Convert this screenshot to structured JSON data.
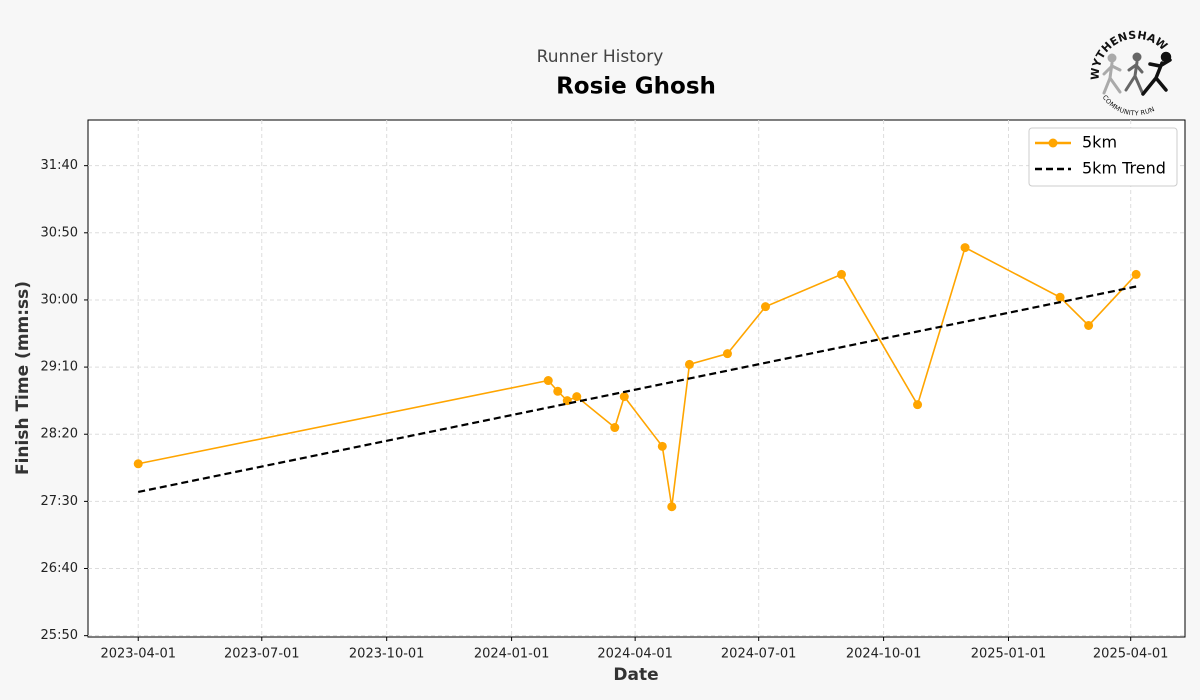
{
  "chart_data": {
    "type": "line",
    "subtitle": "Runner History",
    "title": "Rosie Ghosh",
    "logo": {
      "top_text": "WYTHENSHAWE",
      "bottom_text": "COMMUNITY RUN"
    },
    "x_label": "Date",
    "y_label": "Finish Time (mm:ss)",
    "grid": true,
    "legend": "upper right",
    "xlim": [
      "2023-02-23",
      "2025-05-11"
    ],
    "xticks": [
      "2023-04-01",
      "2023-07-01",
      "2023-10-01",
      "2024-01-01",
      "2024-04-01",
      "2024-07-01",
      "2024-10-01",
      "2025-01-01",
      "2025-04-01"
    ],
    "ylim": [
      1549,
      1934
    ],
    "yticks": [
      {
        "value": 1550,
        "label": "25:50"
      },
      {
        "value": 1600,
        "label": "26:40"
      },
      {
        "value": 1650,
        "label": "27:30"
      },
      {
        "value": 1700,
        "label": "28:20"
      },
      {
        "value": 1750,
        "label": "29:10"
      },
      {
        "value": 1800,
        "label": "30:00"
      },
      {
        "value": 1850,
        "label": "30:50"
      },
      {
        "value": 1900,
        "label": "31:40"
      }
    ],
    "series": [
      {
        "name": "5km",
        "color": "#ffa500",
        "style": "solid",
        "markers": true,
        "x": [
          "2023-04-01",
          "2024-01-28",
          "2024-02-04",
          "2024-02-11",
          "2024-02-18",
          "2024-03-17",
          "2024-03-24",
          "2024-04-21",
          "2024-04-28",
          "2024-05-11",
          "2024-06-08",
          "2024-07-06",
          "2024-08-31",
          "2024-10-26",
          "2024-11-30",
          "2025-02-08",
          "2025-03-01",
          "2025-04-05"
        ],
        "values": [
          1678,
          1740,
          1732,
          1725,
          1728,
          1705,
          1728,
          1691,
          1646,
          1752,
          1760,
          1795,
          1819,
          1722,
          1839,
          1802,
          1781,
          1819
        ]
      },
      {
        "name": "5km Trend",
        "color": "#000000",
        "style": "dashed",
        "markers": false,
        "x": [
          "2023-04-01",
          "2025-04-05"
        ],
        "values": [
          1657,
          1810
        ]
      }
    ]
  }
}
